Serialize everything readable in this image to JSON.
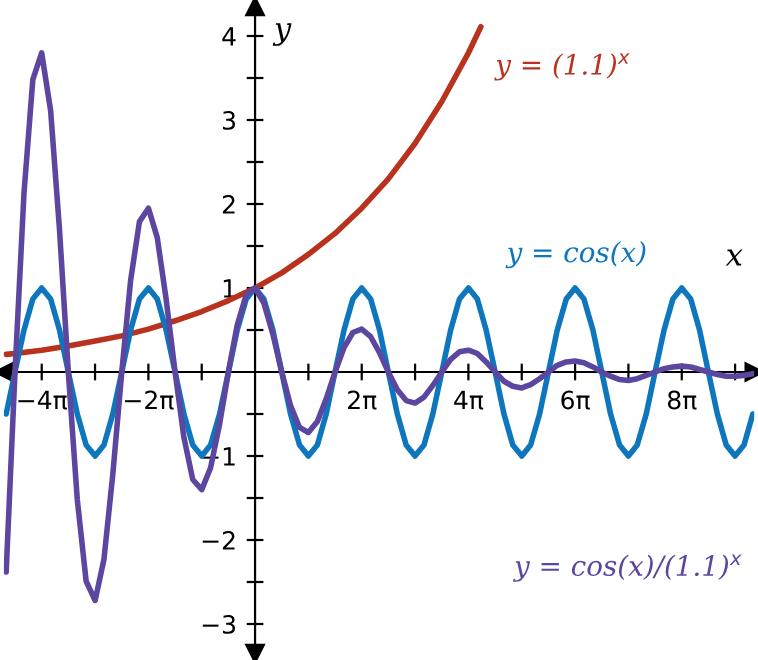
{
  "chart_data": {
    "type": "line",
    "xlabel": "x",
    "ylabel": "y",
    "x": [
      -14.66,
      -14.14,
      -13.61,
      -13.09,
      -12.57,
      -12.04,
      -11.52,
      -11.0,
      -10.47,
      -9.95,
      -9.42,
      -8.9,
      -8.38,
      -7.85,
      -7.33,
      -6.81,
      -6.28,
      -5.76,
      -5.24,
      -4.71,
      -4.19,
      -3.67,
      -3.14,
      -2.62,
      -2.09,
      -1.57,
      -1.05,
      -0.52,
      0,
      0.52,
      1.05,
      1.57,
      2.09,
      2.62,
      3.14,
      3.67,
      4.19,
      4.71,
      5.24,
      5.76,
      6.28,
      6.81,
      7.33,
      7.85,
      8.38,
      8.9,
      9.42,
      9.95,
      10.47,
      11.0,
      11.52,
      12.04,
      12.57,
      13.09,
      13.61,
      14.14,
      14.66,
      15.18,
      15.71,
      16.23,
      16.76,
      17.28,
      17.8,
      18.33,
      18.85,
      19.37,
      19.9,
      20.42,
      20.94,
      21.47,
      21.99,
      22.51,
      23.04,
      23.56,
      24.09,
      24.61,
      25.13,
      25.66,
      26.18,
      26.7,
      27.23,
      27.75,
      28.27,
      28.8,
      29.32
    ],
    "series": [
      {
        "name": "y = (1.1)$^{x}$",
        "color": "#b8321e",
        "x": [
          -14.66,
          -14.14,
          -12.57,
          -11.0,
          -9.42,
          -7.85,
          -6.28,
          -4.71,
          -3.14,
          -1.57,
          0,
          1.57,
          3.14,
          4.71,
          6.28,
          7.85,
          9.42,
          11.0,
          12.57,
          13.3
        ],
        "values": [
          0.21,
          0.22,
          0.26,
          0.31,
          0.37,
          0.43,
          0.51,
          0.61,
          0.72,
          0.85,
          1,
          1.18,
          1.4,
          1.65,
          1.95,
          2.3,
          2.72,
          3.22,
          3.8,
          4.11
        ]
      },
      {
        "name": "y = cos(x)",
        "color": "#0d76bd",
        "values": [
          -0.5,
          0,
          0.5,
          0.87,
          1,
          0.87,
          0.5,
          0,
          -0.5,
          -0.87,
          -1,
          -0.87,
          -0.5,
          0,
          0.5,
          0.87,
          1,
          0.87,
          0.5,
          0,
          -0.5,
          -0.87,
          -1,
          -0.87,
          -0.5,
          0,
          0.5,
          0.87,
          1,
          0.87,
          0.5,
          0,
          -0.5,
          -0.87,
          -1,
          -0.87,
          -0.5,
          0,
          0.5,
          0.87,
          1,
          0.87,
          0.5,
          0,
          -0.5,
          -0.87,
          -1,
          -0.87,
          -0.5,
          0,
          0.5,
          0.87,
          1,
          0.87,
          0.5,
          0,
          -0.5,
          -0.87,
          -1,
          -0.87,
          -0.5,
          0,
          0.5,
          0.87,
          1,
          0.87,
          0.5,
          0,
          -0.5,
          -0.87,
          -1,
          -0.87,
          -0.5,
          0,
          0.5,
          0.87,
          1,
          0.87,
          0.5,
          0,
          -0.5,
          -0.87,
          -1,
          -0.87,
          -0.5
        ]
      },
      {
        "name": "y = cos(x)/(1.1)$^{x}$",
        "color": "#5c46a0",
        "values": [
          -2.38,
          0,
          2.13,
          3.48,
          3.8,
          3.11,
          1.7,
          0,
          -1.52,
          -2.49,
          -2.72,
          -2.23,
          -1.22,
          0,
          1.09,
          1.79,
          1.95,
          1.6,
          0.87,
          0,
          -0.78,
          -1.28,
          -1.4,
          -1.14,
          -0.62,
          0,
          0.56,
          0.92,
          1,
          0.82,
          0.45,
          0,
          -0.4,
          -0.66,
          -0.72,
          -0.59,
          -0.32,
          0,
          0.29,
          0.47,
          0.51,
          0.42,
          0.23,
          0,
          -0.21,
          -0.34,
          -0.37,
          -0.3,
          -0.16,
          0,
          0.15,
          0.24,
          0.26,
          0.22,
          0.12,
          0,
          -0.11,
          -0.17,
          -0.19,
          -0.15,
          -0.08,
          0,
          0.08,
          0.12,
          0.13,
          0.11,
          0.06,
          0,
          -0.05,
          -0.09,
          -0.1,
          -0.08,
          -0.04,
          0,
          0.04,
          0.06,
          0.07,
          0.06,
          0.03,
          0,
          -0.03,
          -0.05,
          -0.05,
          -0.04,
          -0.02
        ]
      }
    ],
    "xlim": [
      -14.8,
      29.4
    ],
    "ylim": [
      -3.35,
      4.35
    ],
    "xticks": [
      {
        "value": -12.566,
        "label": "−4π"
      },
      {
        "value": -9.425,
        "label": null
      },
      {
        "value": -6.283,
        "label": "−2π"
      },
      {
        "value": -3.142,
        "label": null
      },
      {
        "value": 3.142,
        "label": null
      },
      {
        "value": 6.283,
        "label": "2π"
      },
      {
        "value": 9.425,
        "label": null
      },
      {
        "value": 12.566,
        "label": "4π"
      },
      {
        "value": 15.708,
        "label": null
      },
      {
        "value": 18.85,
        "label": "6π"
      },
      {
        "value": 21.991,
        "label": null
      },
      {
        "value": 25.133,
        "label": "8π"
      },
      {
        "value": 28.274,
        "label": null
      }
    ],
    "yticks": [
      {
        "value": -3,
        "label": "−3"
      },
      {
        "value": -2.5,
        "label": null
      },
      {
        "value": -2,
        "label": "−2"
      },
      {
        "value": -1.5,
        "label": null
      },
      {
        "value": -1,
        "label": "−1"
      },
      {
        "value": -0.5,
        "label": null
      },
      {
        "value": 0.5,
        "label": null
      },
      1,
      {
        "value": 1.5,
        "label": null
      },
      2,
      {
        "value": 2.5,
        "label": null
      },
      3,
      {
        "value": 3.5,
        "label": null
      },
      4
    ],
    "grid": false,
    "legend": false,
    "line_style": "solid",
    "marker": "none"
  }
}
